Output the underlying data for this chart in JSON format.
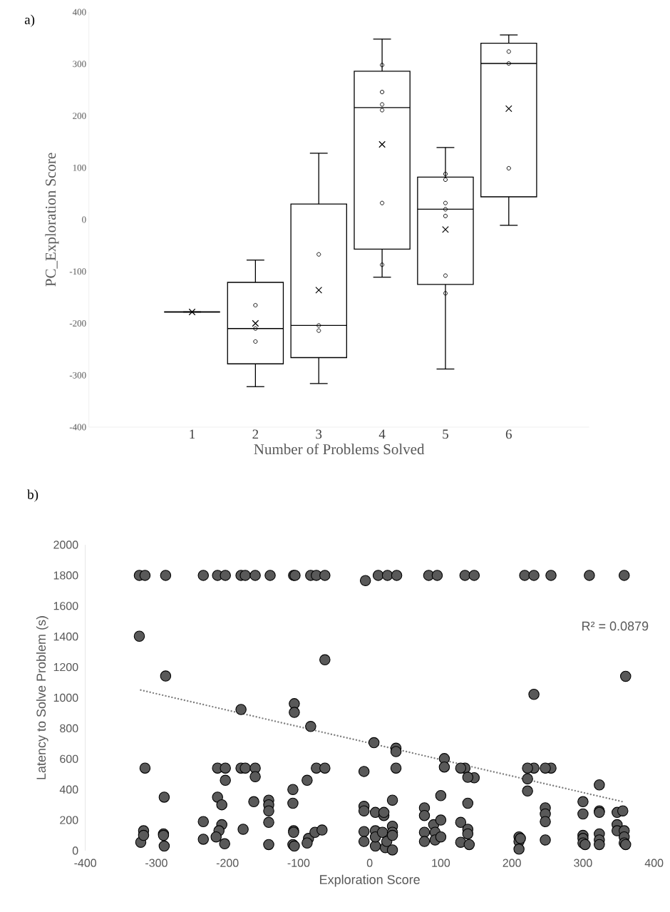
{
  "chart_data": [
    {
      "type": "box",
      "annotations": [
        "a)"
      ],
      "xlabel": "Number of Problems Solved",
      "ylabel": "PC_Exploration Score",
      "categories": [
        "1",
        "2",
        "3",
        "4",
        "5",
        "6"
      ],
      "color": "#000000",
      "boxes": [
        {
          "low": -178,
          "q1": -178,
          "median": -178,
          "q3": -178,
          "high": -178,
          "mean": -178
        },
        {
          "low": -322,
          "q1": -278,
          "median": -210,
          "q3": -121,
          "high": -78,
          "mean": -200
        },
        {
          "low": -316,
          "q1": -266,
          "median": -204,
          "q3": 30,
          "high": 128,
          "mean": -136
        },
        {
          "low": -111,
          "q1": -57,
          "median": 216,
          "q3": 286,
          "high": 348,
          "mean": 145
        },
        {
          "low": -288,
          "q1": -125,
          "median": 20,
          "q3": 82,
          "high": 139,
          "mean": -19
        },
        {
          "low": -11,
          "q1": 44,
          "median": 301,
          "q3": 340,
          "high": 356,
          "mean": 214
        }
      ],
      "series": [
        {
          "type": "scatter",
          "color": "#000000",
          "marker": "circle",
          "x": [
            "2",
            "2",
            "2",
            "3",
            "3",
            "3",
            "4",
            "4",
            "4",
            "4",
            "4",
            "4",
            "5",
            "5",
            "5",
            "5",
            "5",
            "5",
            "5",
            "6",
            "6",
            "6"
          ],
          "values": [
            -165,
            -210,
            -235,
            -67,
            -204,
            -214,
            298,
            246,
            222,
            211,
            32,
            -87,
            88,
            77,
            32,
            20,
            7,
            -108,
            -142,
            324,
            301,
            99
          ]
        }
      ],
      "ylim": [
        -400,
        400
      ],
      "yticks": [
        -400,
        -300,
        -200,
        -100,
        0,
        100,
        200,
        300,
        400
      ]
    },
    {
      "type": "scatter",
      "annotations": [
        "b)",
        "R² = 0.0879"
      ],
      "xlabel": "Exploration Score",
      "ylabel": "Latency to Solve Problem (s)",
      "series": [
        {
          "type": "scatter",
          "color": "#595959",
          "marker": "circle",
          "x": [
            -324,
            -316,
            -287,
            -234,
            -214,
            -203,
            -181,
            -175,
            -161,
            -140,
            -107,
            -105,
            -83,
            -75,
            -63,
            -6,
            12,
            25,
            38,
            83,
            95,
            134,
            147,
            218,
            231,
            255,
            309,
            358,
            -324,
            -287,
            -63,
            360,
            231,
            -181,
            -106,
            -106,
            -83,
            6,
            37,
            37,
            105,
            105,
            -316,
            -214,
            -203,
            -181,
            -175,
            -161,
            -75,
            -63,
            37,
            134,
            231,
            255,
            -8,
            147,
            -161,
            -203,
            -322,
            -318,
            -318,
            -289,
            -290,
            -290,
            -289,
            -234,
            -234,
            -214,
            -208,
            -208,
            -212,
            -216,
            -204,
            -178,
            -163,
            -142,
            -142,
            -142,
            -142,
            -142,
            -108,
            -108,
            -107,
            -107,
            -108,
            -106,
            -88,
            -86,
            -88,
            -77,
            -67,
            -8,
            -8,
            -8,
            -8,
            8,
            8,
            8,
            8,
            18,
            20,
            20,
            22,
            24,
            32,
            32,
            32,
            32,
            32,
            77,
            77,
            77,
            77,
            90,
            92,
            92,
            100,
            100,
            100,
            128,
            128,
            128,
            138,
            138,
            138,
            138,
            140,
            210,
            210,
            210,
            212,
            222,
            222,
            222,
            247,
            247,
            247,
            247,
            247,
            300,
            300,
            300,
            300,
            300,
            303,
            323,
            323,
            323,
            323,
            323,
            323,
            348,
            348,
            348,
            356,
            358,
            358,
            358,
            360
          ],
          "values": [
            1800,
            1800,
            1800,
            1800,
            1800,
            1800,
            1800,
            1800,
            1800,
            1800,
            1800,
            1800,
            1800,
            1800,
            1800,
            1766,
            1800,
            1800,
            1800,
            1800,
            1800,
            1800,
            1800,
            1800,
            1800,
            1800,
            1800,
            1800,
            1402,
            1142,
            1248,
            1140,
            1022,
            923,
            961,
            904,
            812,
            706,
            670,
            648,
            602,
            547,
            540,
            540,
            540,
            540,
            540,
            540,
            540,
            540,
            540,
            540,
            540,
            540,
            518,
            477,
            484,
            460,
            55,
            130,
            100,
            350,
            110,
            100,
            30,
            190,
            75,
            350,
            300,
            170,
            130,
            90,
            45,
            140,
            320,
            330,
            300,
            260,
            185,
            40,
            400,
            310,
            130,
            120,
            40,
            30,
            460,
            80,
            50,
            120,
            135,
            290,
            260,
            125,
            60,
            250,
            130,
            30,
            90,
            120,
            230,
            250,
            20,
            60,
            330,
            160,
            120,
            100,
            5,
            280,
            230,
            120,
            60,
            170,
            120,
            70,
            360,
            200,
            90,
            540,
            185,
            55,
            480,
            310,
            140,
            110,
            40,
            90,
            60,
            10,
            80,
            540,
            470,
            390,
            540,
            280,
            240,
            190,
            70,
            320,
            240,
            100,
            80,
            50,
            40,
            430,
            260,
            250,
            110,
            70,
            40,
            250,
            170,
            130,
            260,
            130,
            90,
            50,
            40
          ]
        },
        {
          "type": "line",
          "color": "#7f7f7f",
          "line_style": "dotted",
          "x": [
            -322,
            356
          ],
          "values": [
            1050,
            320
          ]
        }
      ],
      "xlim": [
        -400,
        400
      ],
      "xticks": [
        -400,
        -300,
        -200,
        -100,
        0,
        100,
        200,
        300,
        400
      ],
      "ylim": [
        0,
        2000
      ],
      "yticks": [
        0,
        200,
        400,
        600,
        800,
        1000,
        1200,
        1400,
        1600,
        1800,
        2000
      ]
    }
  ]
}
